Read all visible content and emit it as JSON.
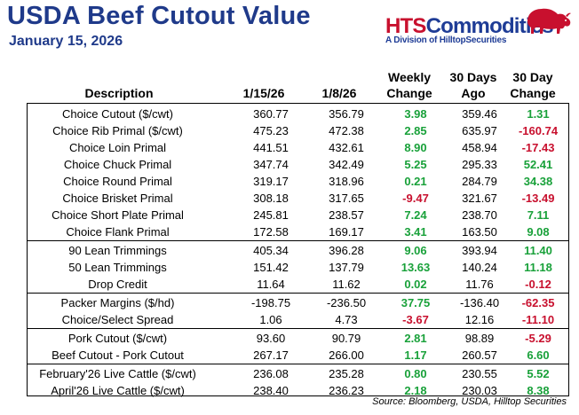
{
  "report": {
    "title": "USDA Beef Cutout Value",
    "date": "January 15, 2026"
  },
  "logo": {
    "brand_hts": "HTS",
    "brand_commodities": "Commodities",
    "tagline": "A Division of HilltopSecurities",
    "icon": "bison-icon"
  },
  "colors": {
    "title": "#1f3a8a",
    "positive": "#19a13a",
    "negative": "#c8102e",
    "brand_red": "#c8102e",
    "brand_blue": "#1e3c96"
  },
  "table": {
    "headers": {
      "description": "Description",
      "date1": "1/15/26",
      "date2": "1/8/26",
      "weekly_change_1": "Weekly",
      "weekly_change_2": "Change",
      "days_ago_1": "30 Days",
      "days_ago_2": "Ago",
      "day_change_1": "30 Day",
      "day_change_2": "Change"
    },
    "rows": [
      {
        "desc": "Choice Cutout ($/cwt)",
        "d1": "360.77",
        "d2": "356.79",
        "wk": "3.98",
        "d30": "359.46",
        "c30": "1.31"
      },
      {
        "desc": "Choice Rib Primal ($/cwt)",
        "d1": "475.23",
        "d2": "472.38",
        "wk": "2.85",
        "d30": "635.97",
        "c30": "-160.74"
      },
      {
        "desc": "Choice Loin Primal",
        "d1": "441.51",
        "d2": "432.61",
        "wk": "8.90",
        "d30": "458.94",
        "c30": "-17.43"
      },
      {
        "desc": "Choice Chuck Primal",
        "d1": "347.74",
        "d2": "342.49",
        "wk": "5.25",
        "d30": "295.33",
        "c30": "52.41"
      },
      {
        "desc": "Choice Round Primal",
        "d1": "319.17",
        "d2": "318.96",
        "wk": "0.21",
        "d30": "284.79",
        "c30": "34.38"
      },
      {
        "desc": "Choice Brisket Primal",
        "d1": "308.18",
        "d2": "317.65",
        "wk": "-9.47",
        "d30": "321.67",
        "c30": "-13.49"
      },
      {
        "desc": "Choice Short Plate Primal",
        "d1": "245.81",
        "d2": "238.57",
        "wk": "7.24",
        "d30": "238.70",
        "c30": "7.11"
      },
      {
        "desc": "Choice Flank Primal",
        "d1": "172.58",
        "d2": "169.17",
        "wk": "3.41",
        "d30": "163.50",
        "c30": "9.08"
      },
      {
        "desc": "90 Lean Trimmings",
        "d1": "405.34",
        "d2": "396.28",
        "wk": "9.06",
        "d30": "393.94",
        "c30": "11.40"
      },
      {
        "desc": "50 Lean Trimmings",
        "d1": "151.42",
        "d2": "137.79",
        "wk": "13.63",
        "d30": "140.24",
        "c30": "11.18"
      },
      {
        "desc": "Drop Credit",
        "d1": "11.64",
        "d2": "11.62",
        "wk": "0.02",
        "d30": "11.76",
        "c30": "-0.12"
      },
      {
        "desc": "Packer Margins ($/hd)",
        "d1": "-198.75",
        "d2": "-236.50",
        "wk": "37.75",
        "d30": "-136.40",
        "c30": "-62.35"
      },
      {
        "desc": "Choice/Select Spread",
        "d1": "1.06",
        "d2": "4.73",
        "wk": "-3.67",
        "d30": "12.16",
        "c30": "-11.10"
      },
      {
        "desc": "Pork Cutout ($/cwt)",
        "d1": "93.60",
        "d2": "90.79",
        "wk": "2.81",
        "d30": "98.89",
        "c30": "-5.29"
      },
      {
        "desc": "Beef Cutout - Pork Cutout",
        "d1": "267.17",
        "d2": "266.00",
        "wk": "1.17",
        "d30": "260.57",
        "c30": "6.60"
      },
      {
        "desc": "February'26 Live Cattle ($/cwt)",
        "d1": "236.08",
        "d2": "235.28",
        "wk": "0.80",
        "d30": "230.55",
        "c30": "5.52"
      },
      {
        "desc": "April'26 Live Cattle ($/cwt)",
        "d1": "238.40",
        "d2": "236.23",
        "wk": "2.18",
        "d30": "230.03",
        "c30": "8.38"
      }
    ]
  },
  "source": "Source: Bloomberg, USDA, Hilltop Securities"
}
